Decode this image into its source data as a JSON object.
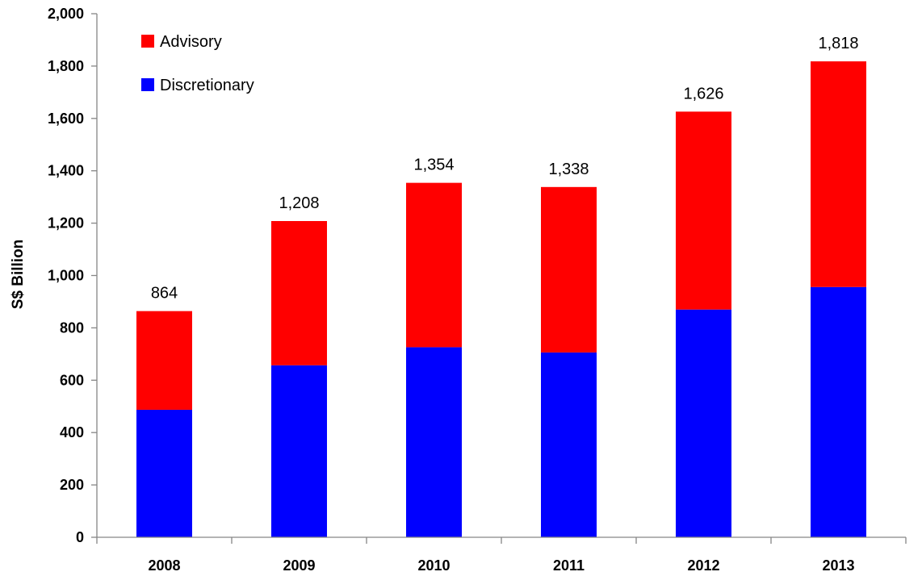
{
  "chart_data": {
    "type": "bar",
    "stacked": true,
    "categories": [
      "2008",
      "2009",
      "2010",
      "2011",
      "2012",
      "2013"
    ],
    "series": [
      {
        "name": "Discretionary",
        "color": "#0000FF",
        "values": [
          487,
          657,
          726,
          706,
          870,
          956
        ]
      },
      {
        "name": "Advisory",
        "color": "#FF0000",
        "values": [
          377,
          551,
          628,
          632,
          756,
          862
        ]
      }
    ],
    "totals": [
      864,
      1208,
      1354,
      1338,
      1626,
      1818
    ],
    "total_labels": [
      "864",
      "1,208",
      "1,354",
      "1,338",
      "1,626",
      "1,818"
    ],
    "ylabel": "S$ Billion",
    "ylim": [
      0,
      2000
    ],
    "yticks": [
      0,
      200,
      400,
      600,
      800,
      1000,
      1200,
      1400,
      1600,
      1800,
      2000
    ],
    "ytick_labels": [
      "0",
      "200",
      "400",
      "600",
      "800",
      "1,000",
      "1,200",
      "1,400",
      "1,600",
      "1,800",
      "2,000"
    ],
    "legend": {
      "position": "top-left",
      "items": [
        {
          "label": "Advisory",
          "color": "#FF0000"
        },
        {
          "label": "Discretionary",
          "color": "#0000FF"
        }
      ]
    },
    "grid": false
  }
}
